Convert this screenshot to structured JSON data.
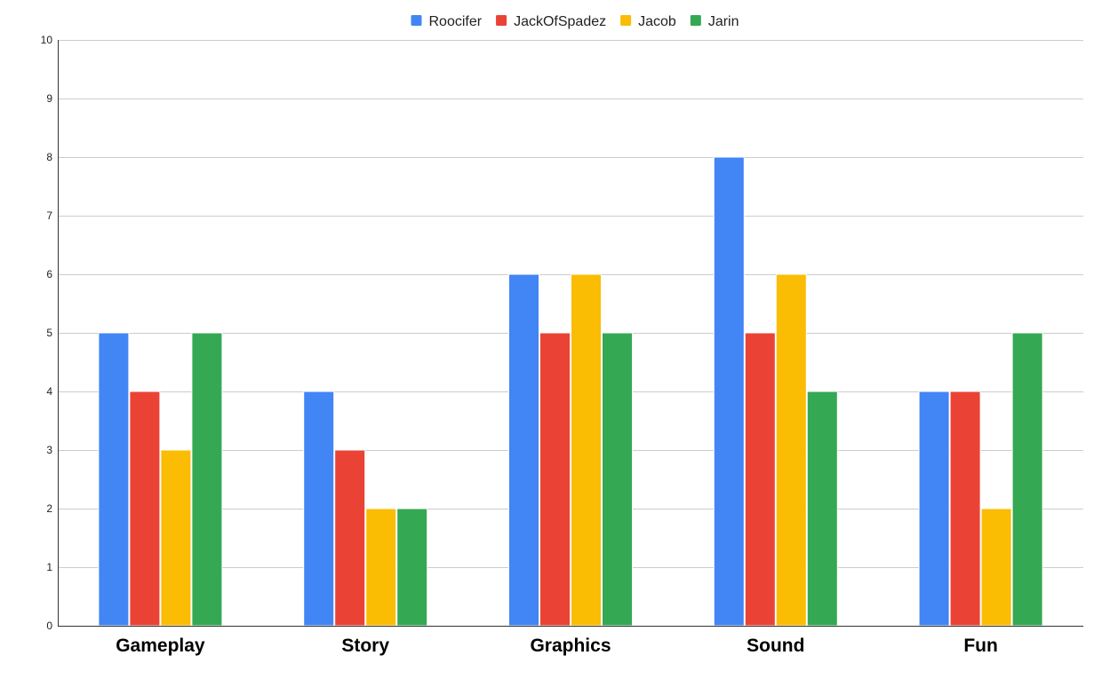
{
  "chart_data": {
    "type": "bar",
    "title": "",
    "xlabel": "",
    "ylabel": "",
    "categories": [
      "Gameplay",
      "Story",
      "Graphics",
      "Sound",
      "Fun"
    ],
    "series": [
      {
        "name": "Roocifer",
        "color": "#4285f4",
        "values": [
          5,
          4,
          6,
          8,
          4
        ]
      },
      {
        "name": "JackOfSpadez",
        "color": "#ea4335",
        "values": [
          4,
          3,
          5,
          5,
          4
        ]
      },
      {
        "name": "Jacob",
        "color": "#fbbc04",
        "values": [
          3,
          2,
          6,
          6,
          2
        ]
      },
      {
        "name": "Jarin",
        "color": "#34a853",
        "values": [
          5,
          2,
          5,
          4,
          5
        ]
      }
    ],
    "ylim": [
      0,
      10
    ],
    "yticks": [
      "0",
      "1",
      "2",
      "3",
      "4",
      "5",
      "6",
      "7",
      "8",
      "9",
      "10"
    ],
    "grid": true,
    "legend_position": "top-center"
  }
}
